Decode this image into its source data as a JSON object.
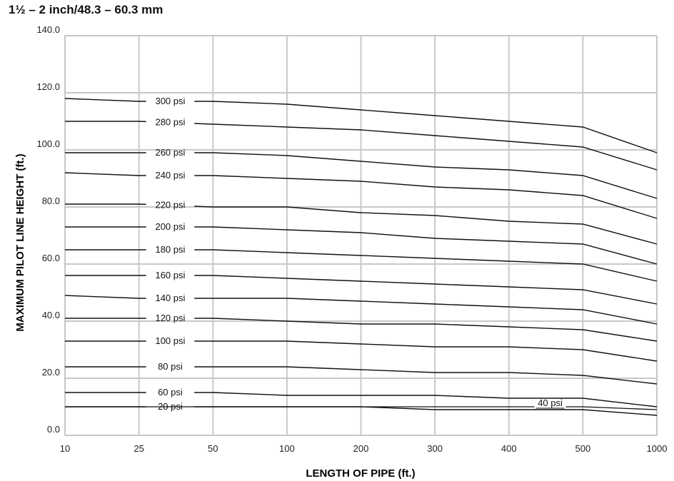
{
  "chart_data": {
    "type": "line",
    "title": "1½ – 2 inch/48.3 – 60.3 mm",
    "xlabel": "LENGTH OF PIPE (ft.)",
    "ylabel": "MAXIMUM PILOT LINE HEIGHT (ft.)",
    "categories": [
      "10",
      "25",
      "50",
      "100",
      "200",
      "300",
      "400",
      "500",
      "1000"
    ],
    "yticks": [
      "0.0",
      "20.0",
      "40.0",
      "60.0",
      "80.0",
      "100.0",
      "120.0",
      "140.0"
    ],
    "ylim": [
      0,
      140
    ],
    "grid": true,
    "series": [
      {
        "name": "300 psi",
        "values": [
          118,
          117,
          117,
          116,
          114,
          112,
          110,
          108,
          99
        ]
      },
      {
        "name": "280 psi",
        "values": [
          110,
          110,
          109,
          108,
          107,
          105,
          103,
          101,
          93
        ]
      },
      {
        "name": "260 psi",
        "values": [
          99,
          99,
          99,
          98,
          96,
          94,
          93,
          91,
          83
        ]
      },
      {
        "name": "240 psi",
        "values": [
          92,
          91,
          91,
          90,
          89,
          87,
          86,
          84,
          76
        ]
      },
      {
        "name": "220 psi",
        "values": [
          81,
          81,
          80,
          80,
          78,
          77,
          75,
          74,
          67
        ]
      },
      {
        "name": "200 psi",
        "values": [
          73,
          73,
          73,
          72,
          71,
          69,
          68,
          67,
          60
        ]
      },
      {
        "name": "180 psi",
        "values": [
          65,
          65,
          65,
          64,
          63,
          62,
          61,
          60,
          54
        ]
      },
      {
        "name": "160 psi",
        "values": [
          56,
          56,
          56,
          55,
          54,
          53,
          52,
          51,
          46
        ]
      },
      {
        "name": "140 psi",
        "values": [
          49,
          48,
          48,
          48,
          47,
          46,
          45,
          44,
          39
        ]
      },
      {
        "name": "120 psi",
        "values": [
          41,
          41,
          41,
          40,
          39,
          39,
          38,
          37,
          33
        ]
      },
      {
        "name": "100 psi",
        "values": [
          33,
          33,
          33,
          33,
          32,
          31,
          31,
          30,
          26
        ]
      },
      {
        "name": "80 psi",
        "values": [
          24,
          24,
          24,
          24,
          23,
          22,
          22,
          21,
          18
        ]
      },
      {
        "name": "60 psi",
        "values": [
          15,
          15,
          15,
          14,
          14,
          14,
          13,
          13,
          10
        ]
      },
      {
        "name": "40 psi",
        "values": [
          10,
          10,
          10,
          10,
          10,
          10,
          10,
          10,
          9
        ]
      },
      {
        "name": "20 psi",
        "values": [
          10,
          10,
          10,
          10,
          10,
          9,
          9,
          9,
          7
        ]
      }
    ]
  }
}
